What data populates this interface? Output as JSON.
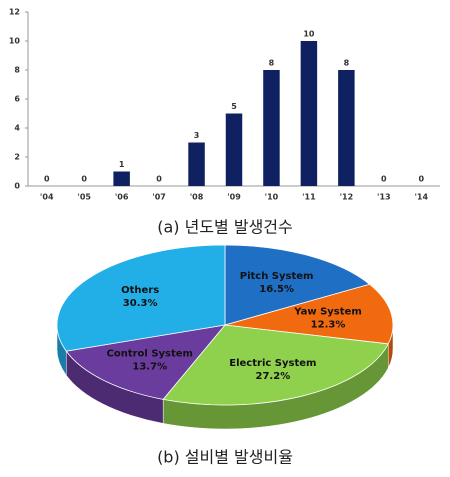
{
  "chart_data": [
    {
      "type": "bar",
      "caption": "(a) 년도별 발생건수",
      "categories": [
        "'04",
        "'05",
        "'06",
        "'07",
        "'08",
        "'09",
        "'10",
        "'11",
        "'12",
        "'13",
        "'14"
      ],
      "values": [
        0,
        0,
        1,
        0,
        3,
        5,
        8,
        10,
        8,
        0,
        0
      ],
      "color": "#0f2160",
      "ylim": [
        0,
        12
      ],
      "yticks": [
        0,
        2,
        4,
        6,
        8,
        10,
        12
      ],
      "grid": false
    },
    {
      "type": "pie",
      "caption": "(b) 설비별 발생비율",
      "categories": [
        "Pitch System",
        "Yaw System",
        "Electric System",
        "Control System",
        "Others"
      ],
      "values": [
        16.5,
        12.3,
        27.2,
        13.7,
        30.3
      ],
      "value_labels": [
        "16.5%",
        "12.3%",
        "27.2%",
        "13.7%",
        "30.3%"
      ],
      "colors": [
        "#1f6fc4",
        "#f26a10",
        "#8fd04c",
        "#6a3c9e",
        "#22afe8"
      ]
    }
  ]
}
